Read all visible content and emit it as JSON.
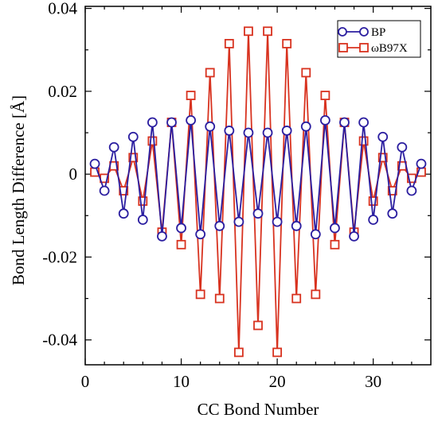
{
  "chart_data": {
    "type": "line",
    "xlabel": "CC Bond Number",
    "ylabel": "Bond Length Difference [Å]",
    "xlim": [
      0,
      36
    ],
    "ylim": [
      -0.046,
      0.0405
    ],
    "xticks": [
      0,
      10,
      20,
      30
    ],
    "xtick_labels": [
      "0",
      "10",
      "20",
      "30"
    ],
    "yticks": [
      0.04,
      0.02,
      0,
      -0.02,
      -0.04
    ],
    "ytick_labels": [
      "0.04",
      "0.02",
      "0",
      "-0.02",
      "-0.04"
    ],
    "grid": false,
    "legend_position": "top-right",
    "x": [
      1,
      2,
      3,
      4,
      5,
      6,
      7,
      8,
      9,
      10,
      11,
      12,
      13,
      14,
      15,
      16,
      17,
      18,
      19,
      20,
      21,
      22,
      23,
      24,
      25,
      26,
      27,
      28,
      29,
      30,
      31,
      32,
      33,
      34,
      35
    ],
    "series": [
      {
        "name": "BP",
        "color": "#2b1ea0",
        "marker": "circle",
        "values": [
          0.0025,
          -0.004,
          0.0065,
          -0.0095,
          0.009,
          -0.011,
          0.0125,
          -0.015,
          0.0125,
          -0.013,
          0.013,
          -0.0145,
          0.0115,
          -0.0125,
          0.0105,
          -0.0115,
          0.01,
          -0.0095,
          0.01,
          -0.0115,
          0.0105,
          -0.0125,
          0.0115,
          -0.0145,
          0.013,
          -0.013,
          0.0125,
          -0.015,
          0.0125,
          -0.011,
          0.009,
          -0.0095,
          0.0065,
          -0.004,
          0.0025
        ]
      },
      {
        "name": "ωB97X",
        "color": "#d8321f",
        "marker": "square",
        "values": [
          0.0005,
          -0.001,
          0.002,
          -0.004,
          0.004,
          -0.0065,
          0.008,
          -0.014,
          0.0125,
          -0.017,
          0.019,
          -0.029,
          0.0245,
          -0.03,
          0.0315,
          -0.043,
          0.0345,
          -0.0365,
          0.0345,
          -0.043,
          0.0315,
          -0.03,
          0.0245,
          -0.029,
          0.019,
          -0.017,
          0.0125,
          -0.014,
          0.008,
          -0.0065,
          0.004,
          -0.004,
          0.002,
          -0.001,
          0.0005
        ]
      }
    ]
  }
}
